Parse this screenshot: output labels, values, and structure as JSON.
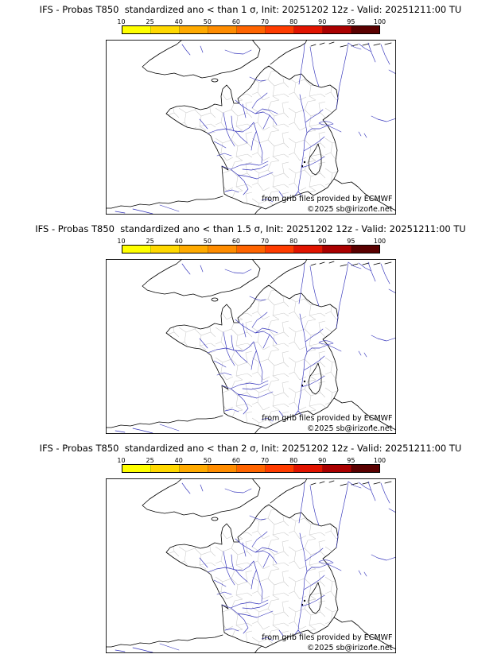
{
  "panels": [
    {
      "title": "IFS - Probas T850  standardized ano < than 1 σ, Init: 20251202 12z - Valid: 20251211:00 TU"
    },
    {
      "title": "IFS - Probas T850  standardized ano < than 1.5 σ, Init: 20251202 12z - Valid: 20251211:00 TU"
    },
    {
      "title": "IFS - Probas T850  standardized ano < than 2 σ, Init: 20251202 12z - Valid: 20251211:00 TU"
    }
  ],
  "colorbar": {
    "ticks": [
      "10",
      "25",
      "40",
      "50",
      "60",
      "70",
      "80",
      "90",
      "95",
      "100"
    ],
    "colors": [
      "#ffff00",
      "#ffd800",
      "#ffaa00",
      "#ff8c00",
      "#ff6400",
      "#ff3c00",
      "#e11400",
      "#aa0000",
      "#5a0000"
    ]
  },
  "map": {
    "attribution_line1": "from grib files provided by ECMWF",
    "attribution_line2": "©2025 sb@irizone.net",
    "colors": {
      "river": "#3333bb",
      "boundary": "#c9c9c9",
      "coast": "#000000",
      "frame": "#000000"
    }
  }
}
